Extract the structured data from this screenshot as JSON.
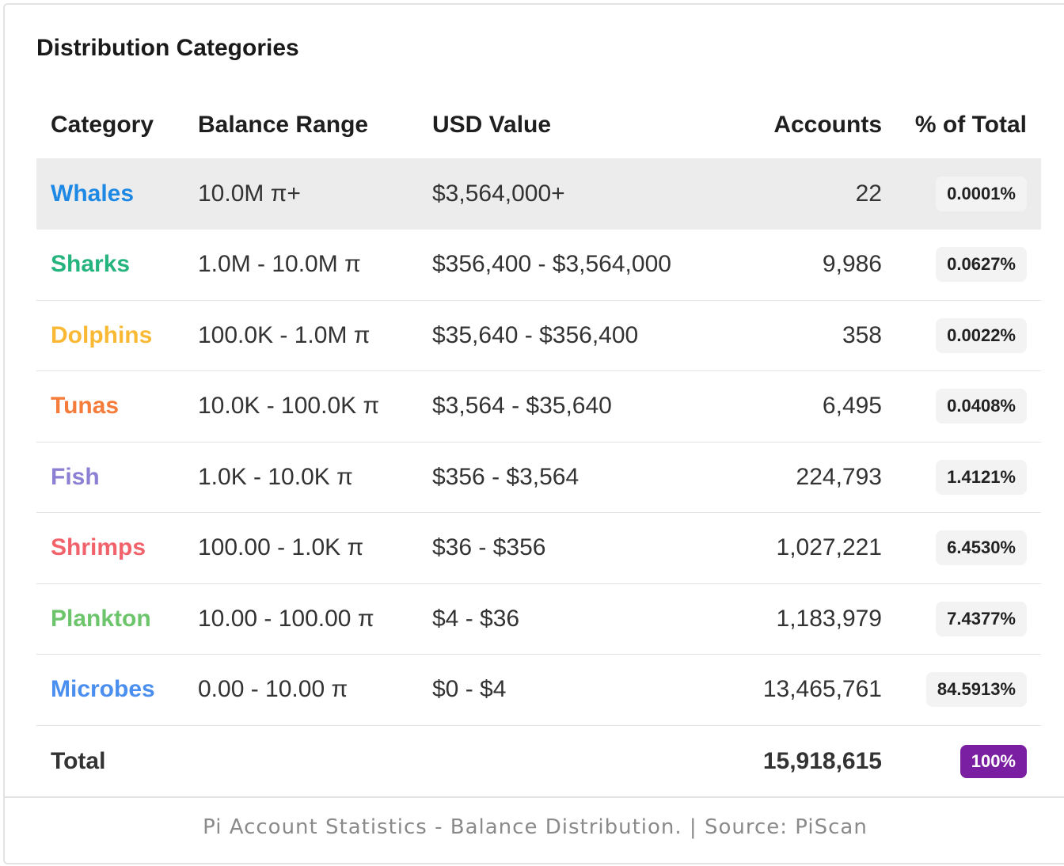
{
  "title": "Distribution Categories",
  "columns": {
    "category": "Category",
    "balance_range": "Balance Range",
    "usd_value": "USD Value",
    "accounts": "Accounts",
    "percent": "% of Total"
  },
  "rows": [
    {
      "category": "Whales",
      "color": "#1e88e5",
      "range": "10.0M π+",
      "usd": "$3,564,000+",
      "accounts": "22",
      "percent": "0.0001%"
    },
    {
      "category": "Sharks",
      "color": "#26b47e",
      "range": "1.0M - 10.0M π",
      "usd": "$356,400 - $3,564,000",
      "accounts": "9,986",
      "percent": "0.0627%"
    },
    {
      "category": "Dolphins",
      "color": "#f9b934",
      "range": "100.0K - 1.0M π",
      "usd": "$35,640 - $356,400",
      "accounts": "358",
      "percent": "0.0022%"
    },
    {
      "category": "Tunas",
      "color": "#f57c3a",
      "range": "10.0K - 100.0K π",
      "usd": "$3,564 - $35,640",
      "accounts": "6,495",
      "percent": "0.0408%"
    },
    {
      "category": "Fish",
      "color": "#8b80d4",
      "range": "1.0K - 10.0K π",
      "usd": "$356 - $3,564",
      "accounts": "224,793",
      "percent": "1.4121%"
    },
    {
      "category": "Shrimps",
      "color": "#f2626b",
      "range": "100.00 - 1.0K π",
      "usd": "$36 - $356",
      "accounts": "1,027,221",
      "percent": "6.4530%"
    },
    {
      "category": "Plankton",
      "color": "#6cc56b",
      "range": "10.00 - 100.00 π",
      "usd": "$4 - $36",
      "accounts": "1,183,979",
      "percent": "7.4377%"
    },
    {
      "category": "Microbes",
      "color": "#4a8ff0",
      "range": "0.00 - 10.00 π",
      "usd": "$0 - $4",
      "accounts": "13,465,761",
      "percent": "84.5913%"
    }
  ],
  "total": {
    "label": "Total",
    "accounts": "15,918,615",
    "percent": "100%",
    "badge_color": "#7b1fa2"
  },
  "caption": "Pi Account Statistics - Balance Distribution. | Source: PiScan"
}
